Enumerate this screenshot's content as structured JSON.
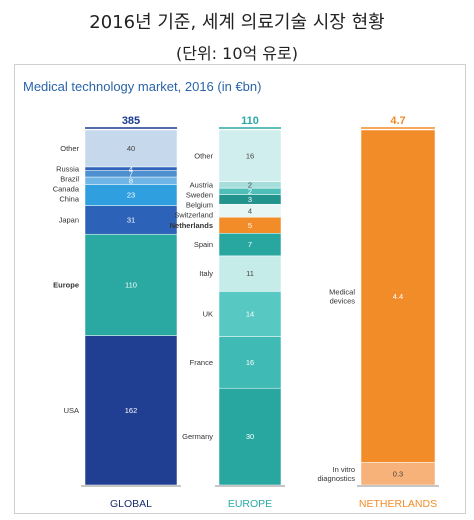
{
  "header": {
    "title_kr": "2016년 기준, 세계 의료기술 시장 현황",
    "unit_kr": "(단위: 10억 유로)"
  },
  "colors": {
    "title": "#2a64a8",
    "global_total": "#1a3c8f",
    "europe_total": "#2aaaa6",
    "netherlands": "#f28c28",
    "axis_line": "#666666"
  },
  "chart_data": {
    "type": "bar",
    "title": "Medical technology market, 2016 (in €bn)",
    "stacks": [
      {
        "category": "GLOBAL",
        "total": "385",
        "segments": [
          {
            "label": "USA",
            "value": 162,
            "value_label": "162",
            "color": "#203f93"
          },
          {
            "label": "Europe",
            "value": 110,
            "value_label": "110",
            "color": "#2aa8a2"
          },
          {
            "label": "Japan",
            "value": 31,
            "value_label": "31",
            "color": "#2d62b9"
          },
          {
            "label": "China",
            "value": 23,
            "value_label": "23",
            "color": "#2f9fe0"
          },
          {
            "label": "Canada",
            "value": 8,
            "value_label": "8",
            "color": "#6fb6e6"
          },
          {
            "label": "Brazil",
            "value": 7,
            "value_label": "7",
            "color": "#4e8fd0"
          },
          {
            "label": "Russia",
            "value": 4,
            "value_label": "4",
            "color": "#2f64ba"
          },
          {
            "label": "Other",
            "value": 40,
            "value_label": "40",
            "color": "#c6d8ec"
          }
        ]
      },
      {
        "category": "EUROPE",
        "total": "110",
        "segments": [
          {
            "label": "Germany",
            "value": 30,
            "value_label": "30",
            "color": "#28a7a1"
          },
          {
            "label": "France",
            "value": 16,
            "value_label": "16",
            "color": "#3fbab5"
          },
          {
            "label": "UK",
            "value": 14,
            "value_label": "14",
            "color": "#58c8c3"
          },
          {
            "label": "Italy",
            "value": 11,
            "value_label": "11",
            "color": "#c6ecea"
          },
          {
            "label": "Spain",
            "value": 7,
            "value_label": "7",
            "color": "#28a7a1"
          },
          {
            "label": "Netherlands",
            "value": 5,
            "value_label": "5",
            "color": "#f28c28"
          },
          {
            "label": "Switzerland",
            "value": 4,
            "value_label": "4",
            "color": "#e6f6f5"
          },
          {
            "label": "Belgium",
            "value": 3,
            "value_label": "3",
            "color": "#23938e"
          },
          {
            "label": "Sweden",
            "value": 2,
            "value_label": "2",
            "color": "#4fbeb9"
          },
          {
            "label": "Austria",
            "value": 2,
            "value_label": "2",
            "color": "#a6dedb"
          },
          {
            "label": "Other",
            "value": 16,
            "value_label": "16",
            "color": "#cfeeed"
          }
        ]
      },
      {
        "category": "NETHERLANDS",
        "total": "4.7",
        "segments": [
          {
            "label": "In vitro diagnostics",
            "value": 0.3,
            "value_label": "0.3",
            "color": "#f7b27a"
          },
          {
            "label": "Medical devices",
            "value": 4.4,
            "value_label": "4.4",
            "color": "#f28c28"
          }
        ]
      }
    ]
  }
}
